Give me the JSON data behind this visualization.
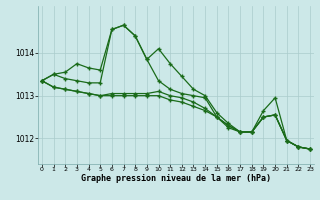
{
  "background_color": "#cce8e8",
  "grid_color": "#aacccc",
  "line_color": "#1a6b1a",
  "x_ticks": [
    0,
    1,
    2,
    3,
    4,
    5,
    6,
    7,
    8,
    9,
    10,
    11,
    12,
    13,
    14,
    15,
    16,
    17,
    18,
    19,
    20,
    21,
    22,
    23
  ],
  "y_ticks": [
    1012,
    1013,
    1014
  ],
  "ylim": [
    1011.4,
    1015.1
  ],
  "xlim": [
    -0.3,
    23.3
  ],
  "xlabel": "Graphe pression niveau de la mer (hPa)",
  "series": [
    [
      1013.35,
      1013.5,
      1013.55,
      1013.75,
      1013.65,
      1013.6,
      1014.55,
      1014.65,
      1014.4,
      1013.85,
      1014.1,
      1013.75,
      1013.45,
      1013.15,
      1013.0,
      1012.6,
      1012.35,
      1012.15,
      1012.15,
      1012.65,
      1012.95,
      1011.95,
      1011.8,
      1011.75
    ],
    [
      1013.35,
      1013.2,
      1013.15,
      1013.1,
      1013.05,
      1013.0,
      1013.05,
      1013.05,
      1013.05,
      1013.05,
      1013.1,
      1013.0,
      1012.95,
      1012.85,
      1012.7,
      1012.5,
      1012.3,
      1012.15,
      1012.15,
      1012.5,
      1012.55,
      1011.95,
      1011.8,
      1011.75
    ],
    [
      1013.35,
      1013.2,
      1013.15,
      1013.1,
      1013.05,
      1013.0,
      1013.0,
      1013.0,
      1013.0,
      1013.0,
      1013.0,
      1012.9,
      1012.85,
      1012.75,
      1012.65,
      1012.5,
      1012.3,
      1012.15,
      1012.15,
      1012.5,
      1012.55,
      1011.95,
      1011.8,
      1011.75
    ],
    [
      1013.35,
      1013.5,
      1013.4,
      1013.35,
      1013.3,
      1013.3,
      1014.55,
      1014.65,
      1014.4,
      1013.85,
      1013.35,
      1013.15,
      1013.05,
      1013.0,
      1012.95,
      1012.5,
      1012.25,
      1012.15,
      1012.15,
      1012.5,
      1012.55,
      1011.95,
      1011.8,
      1011.75
    ]
  ]
}
